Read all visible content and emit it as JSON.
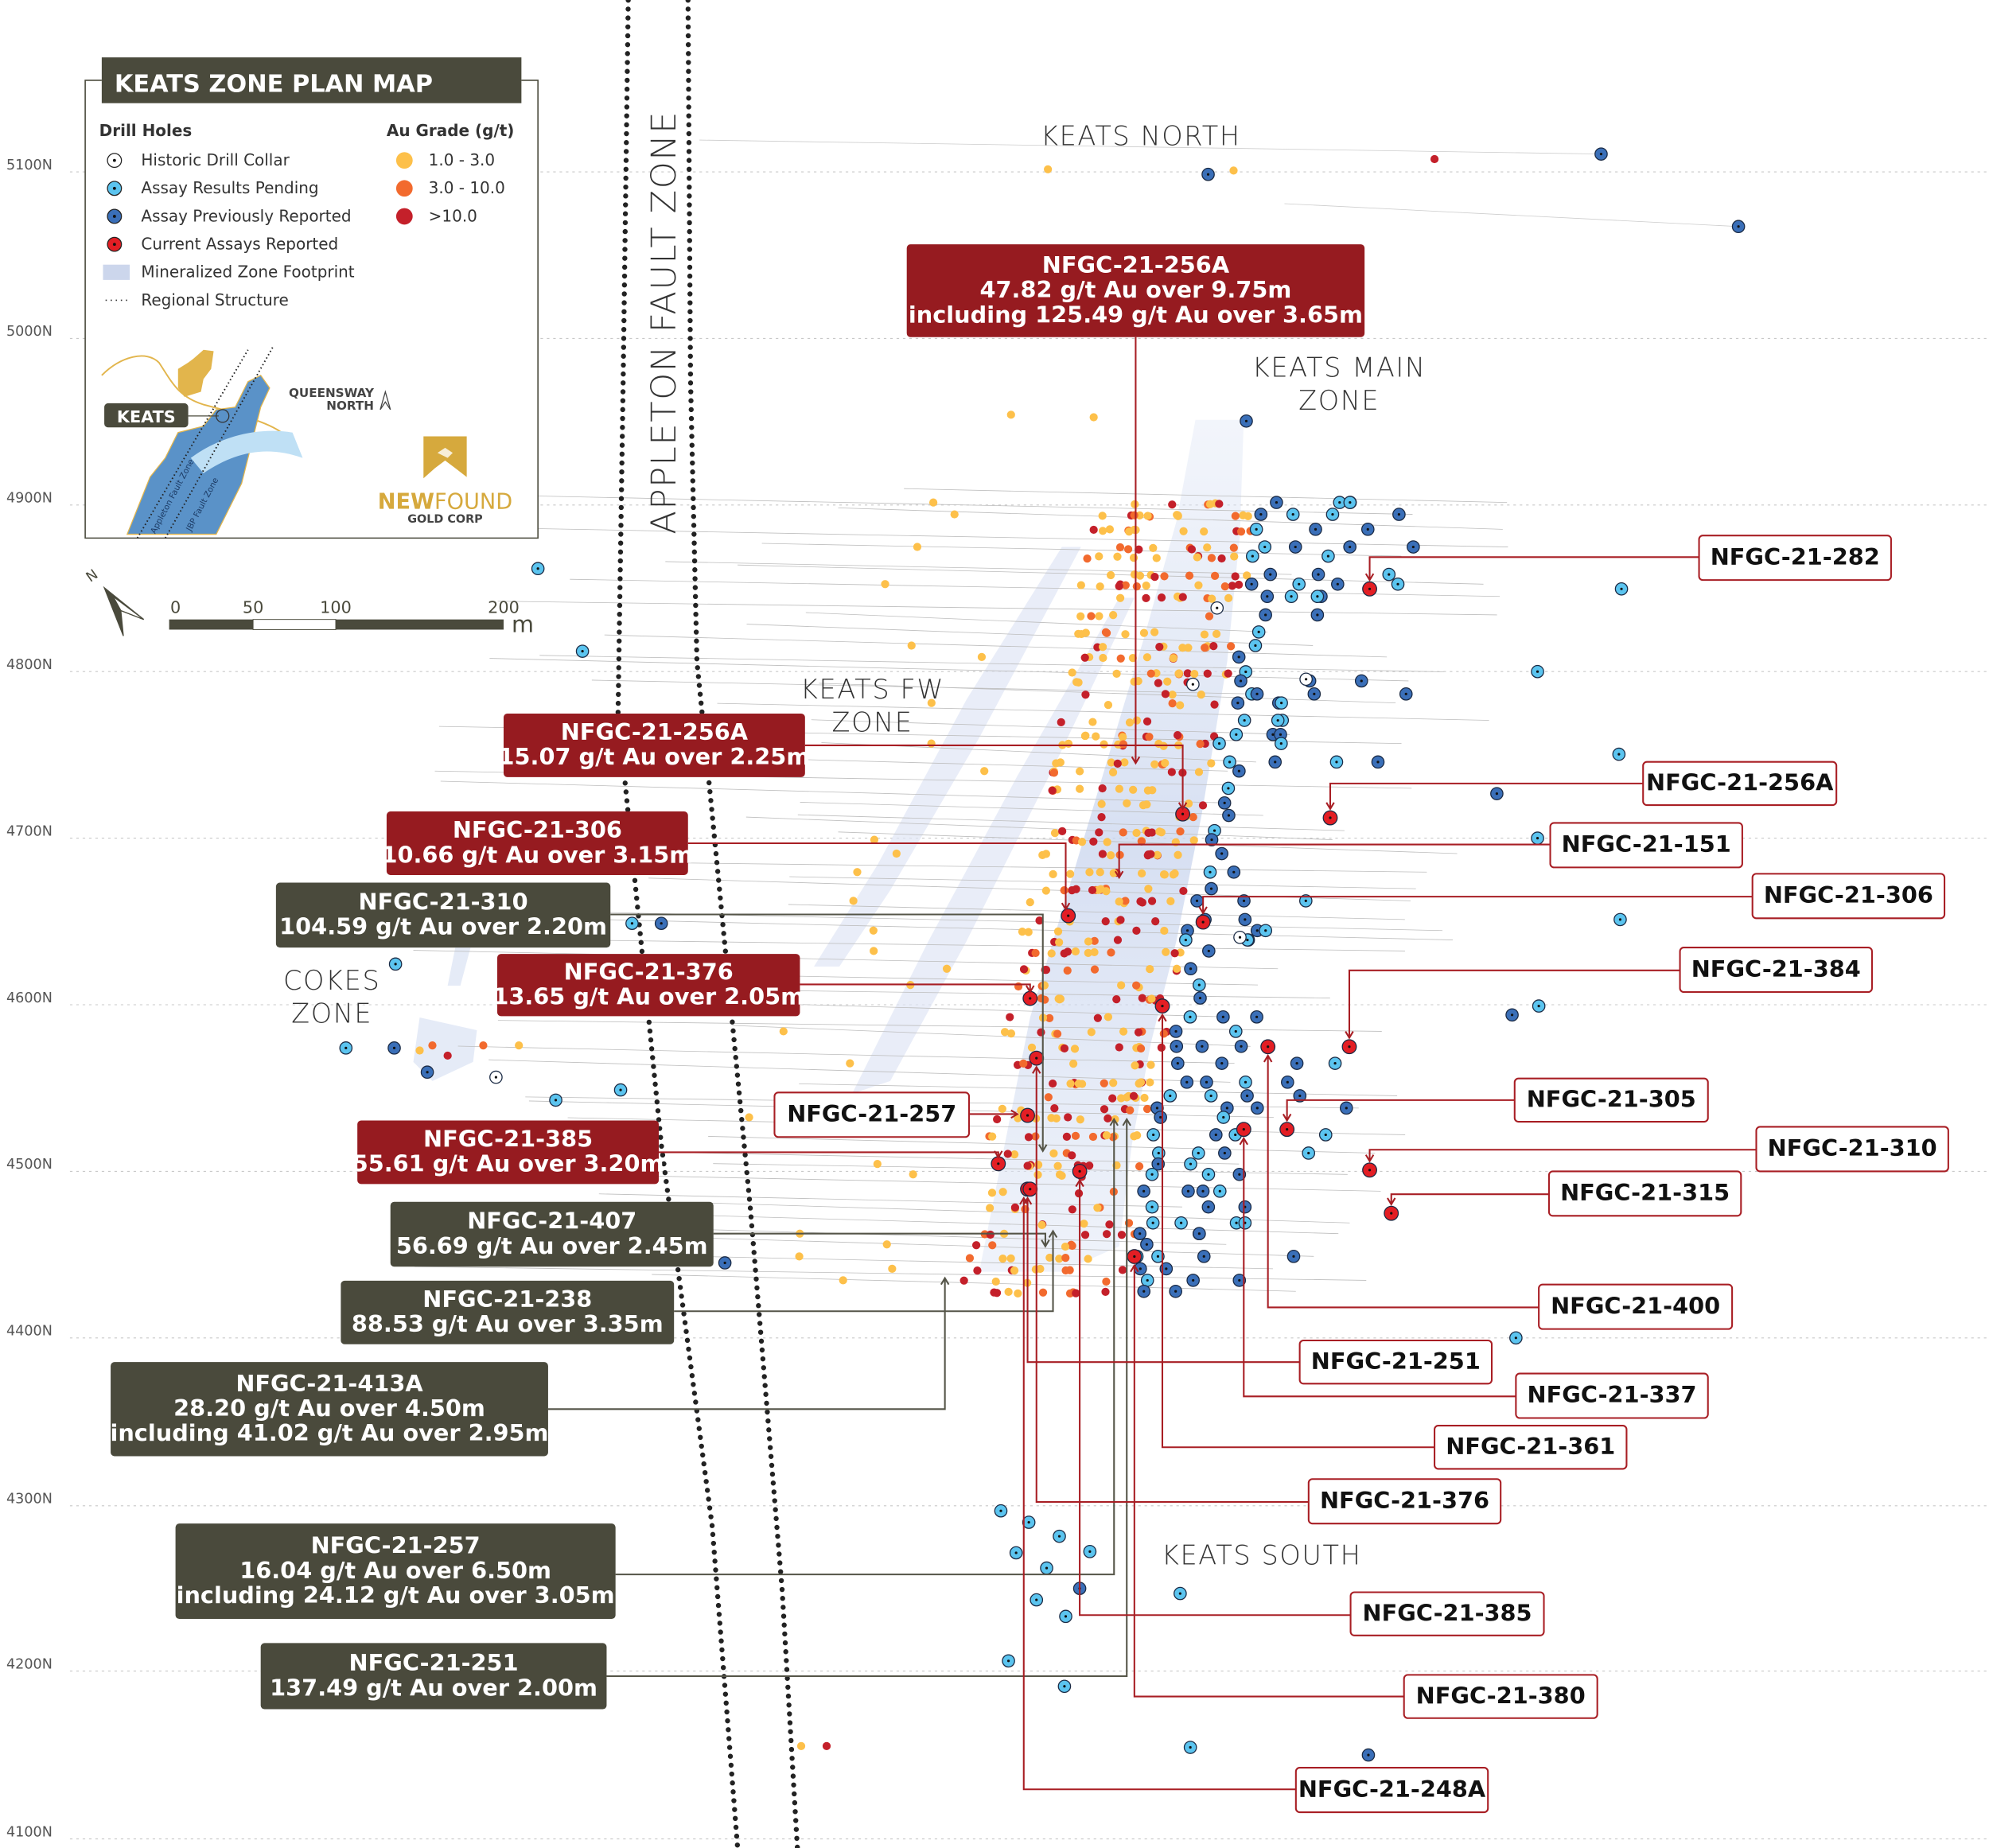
{
  "legend": {
    "title": "KEATS ZONE PLAN MAP",
    "drill_holes_heading": "Drill Holes",
    "drill_holes": [
      {
        "label": "Historic Drill Collar",
        "color": "#ffffff"
      },
      {
        "label": "Assay Results Pending",
        "color": "#5bc4ef"
      },
      {
        "label": "Assay Previously Reported",
        "color": "#3a6fb8"
      },
      {
        "label": "Current Assays Reported",
        "color": "#e31e24"
      },
      {
        "label": "Mineralized Zone Footprint",
        "color": "#ccd6ec"
      },
      {
        "label": "Regional Structure",
        "color": "#333333"
      }
    ],
    "grade_heading": "Au Grade (g/t)",
    "grades": [
      {
        "label": "1.0 - 3.0",
        "color": "#fdc04a"
      },
      {
        "label": "3.0 - 10.0",
        "color": "#f26a2e"
      },
      {
        "label": ">10.0",
        "color": "#c4202a"
      }
    ]
  },
  "inset": {
    "keats_label": "KEATS",
    "queensway_label_1": "QUEENSWAY",
    "queensway_label_2": "NORTH",
    "fault_1": "Appleton Fault Zone",
    "fault_2": "JBP Fault Zone",
    "north_letter": "N"
  },
  "logo": {
    "name_bold": "NEW",
    "name_light": "FOUND",
    "sub": "GOLD CORP"
  },
  "scale": {
    "ticks": [
      "0",
      "50",
      "100",
      "200"
    ],
    "unit": "m",
    "north_letter": "N"
  },
  "northings": [
    "5100N",
    "5000N",
    "4900N",
    "4800N",
    "4700N",
    "4600N",
    "4500N",
    "4400N",
    "4300N",
    "4200N",
    "4100N"
  ],
  "zones": {
    "keats_north": "KEATS NORTH",
    "keats_main_1": "KEATS MAIN",
    "keats_main_2": "ZONE",
    "keats_fw_1": "KEATS FW",
    "keats_fw_2": "ZONE",
    "cokes_1": "COKES",
    "cokes_2": "ZONE",
    "keats_south": "KEATS SOUTH"
  },
  "fault_label": "APPLETON FAULT ZONE",
  "colors": {
    "callout_red": "#961b20",
    "callout_dark": "#4a4a3c",
    "leader_red": "#a81e24",
    "leader_dark": "#555548"
  },
  "callouts": [
    {
      "style": "red",
      "lines": [
        "NFGC-21-256A",
        "47.82 g/t Au over 9.75m",
        "including 125.49 g/t Au over 3.65m"
      ]
    },
    {
      "style": "red",
      "lines": [
        "NFGC-21-256A",
        "15.07 g/t Au over 2.25m"
      ]
    },
    {
      "style": "red",
      "lines": [
        "NFGC-21-306",
        "10.66 g/t Au over 3.15m"
      ]
    },
    {
      "style": "dark",
      "lines": [
        "NFGC-21-310",
        "104.59 g/t Au over 2.20m"
      ]
    },
    {
      "style": "red",
      "lines": [
        "NFGC-21-376",
        "13.65 g/t Au over 2.05m"
      ]
    },
    {
      "style": "outline",
      "lines": [
        "NFGC-21-257"
      ]
    },
    {
      "style": "red",
      "lines": [
        "NFGC-21-385",
        "55.61 g/t Au over 3.20m"
      ]
    },
    {
      "style": "dark",
      "lines": [
        "NFGC-21-407",
        "56.69 g/t Au over 2.45m"
      ]
    },
    {
      "style": "dark",
      "lines": [
        "NFGC-21-238",
        "88.53 g/t Au over 3.35m"
      ]
    },
    {
      "style": "dark",
      "lines": [
        "NFGC-21-413A",
        "28.20 g/t Au over 4.50m",
        "including 41.02 g/t Au over 2.95m"
      ]
    },
    {
      "style": "dark",
      "lines": [
        "NFGC-21-257",
        "16.04 g/t Au over 6.50m",
        "including 24.12 g/t Au over 3.05m"
      ]
    },
    {
      "style": "dark",
      "lines": [
        "NFGC-21-251",
        "137.49 g/t Au over 2.00m"
      ]
    },
    {
      "style": "outline",
      "lines": [
        "NFGC-21-282"
      ]
    },
    {
      "style": "outline",
      "lines": [
        "NFGC-21-256A"
      ]
    },
    {
      "style": "outline",
      "lines": [
        "NFGC-21-151"
      ]
    },
    {
      "style": "outline",
      "lines": [
        "NFGC-21-306"
      ]
    },
    {
      "style": "outline",
      "lines": [
        "NFGC-21-384"
      ]
    },
    {
      "style": "outline",
      "lines": [
        "NFGC-21-305"
      ]
    },
    {
      "style": "outline",
      "lines": [
        "NFGC-21-310"
      ]
    },
    {
      "style": "outline",
      "lines": [
        "NFGC-21-315"
      ]
    },
    {
      "style": "outline",
      "lines": [
        "NFGC-21-400"
      ]
    },
    {
      "style": "outline",
      "lines": [
        "NFGC-21-251"
      ]
    },
    {
      "style": "outline",
      "lines": [
        "NFGC-21-337"
      ]
    },
    {
      "style": "outline",
      "lines": [
        "NFGC-21-361"
      ]
    },
    {
      "style": "outline",
      "lines": [
        "NFGC-21-376"
      ]
    },
    {
      "style": "outline",
      "lines": [
        "NFGC-21-385"
      ]
    },
    {
      "style": "outline",
      "lines": [
        "NFGC-21-380"
      ]
    },
    {
      "style": "outline",
      "lines": [
        "NFGC-21-248A"
      ]
    }
  ]
}
